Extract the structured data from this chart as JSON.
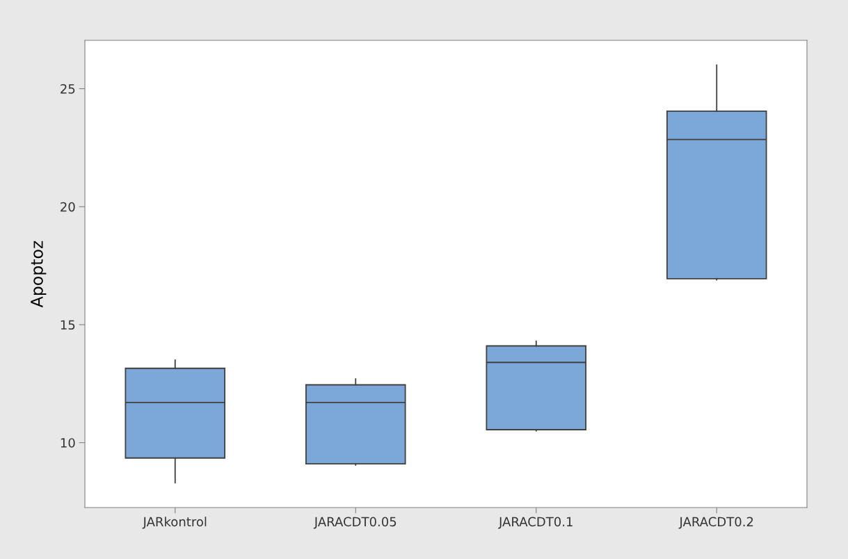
{
  "chart_data": {
    "type": "box",
    "ylabel": "Apoptoz",
    "categories": [
      "JARkontrol",
      "JARACDT0.05",
      "JARACDT0.1",
      "JARACDT0.2"
    ],
    "boxes": [
      {
        "low": 8.3,
        "q1": 9.35,
        "median": 11.7,
        "q3": 13.15,
        "high": 13.5
      },
      {
        "low": 9.05,
        "q1": 9.1,
        "median": 11.7,
        "q3": 12.45,
        "high": 12.7
      },
      {
        "low": 10.5,
        "q1": 10.55,
        "median": 13.4,
        "q3": 14.1,
        "high": 14.3
      },
      {
        "low": 16.9,
        "q1": 16.95,
        "median": 22.85,
        "q3": 24.05,
        "high": 26.0
      }
    ],
    "color": "#7ba7d9",
    "ylim": [
      7.25,
      27.05
    ],
    "yticks": [
      10,
      15,
      20,
      25
    ],
    "grid": false
  }
}
